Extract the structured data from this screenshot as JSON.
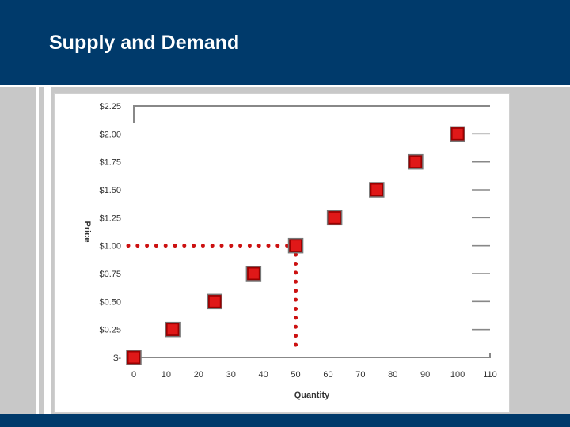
{
  "slide": {
    "title": "Supply and Demand"
  },
  "colors": {
    "header": "#003a6b",
    "marker": "#e01818",
    "dotted_line": "#cc1111",
    "axis_line": "#888888"
  },
  "chart_data": {
    "type": "scatter",
    "title": "",
    "xlabel": "Quantity",
    "ylabel": "Price",
    "xlim": [
      0,
      110
    ],
    "ylim": [
      0,
      2.25
    ],
    "x_ticks": [
      "0",
      "10",
      "20",
      "30",
      "40",
      "50",
      "60",
      "70",
      "80",
      "90",
      "100",
      "110"
    ],
    "y_ticks": [
      "$-",
      "$0.25",
      "$0.50",
      "$0.75",
      "$1.00",
      "$1.25",
      "$1.50",
      "$1.75",
      "$2.00",
      "$2.25"
    ],
    "series": [
      {
        "x": [
          0,
          12,
          25,
          37,
          50,
          62,
          75,
          87,
          100
        ],
        "y": [
          0,
          0.25,
          0.5,
          0.75,
          1.0,
          1.25,
          1.5,
          1.75,
          2.0
        ]
      }
    ],
    "reference_point": {
      "x": 50,
      "y": 1.0
    },
    "legend": "none",
    "grid": false
  }
}
